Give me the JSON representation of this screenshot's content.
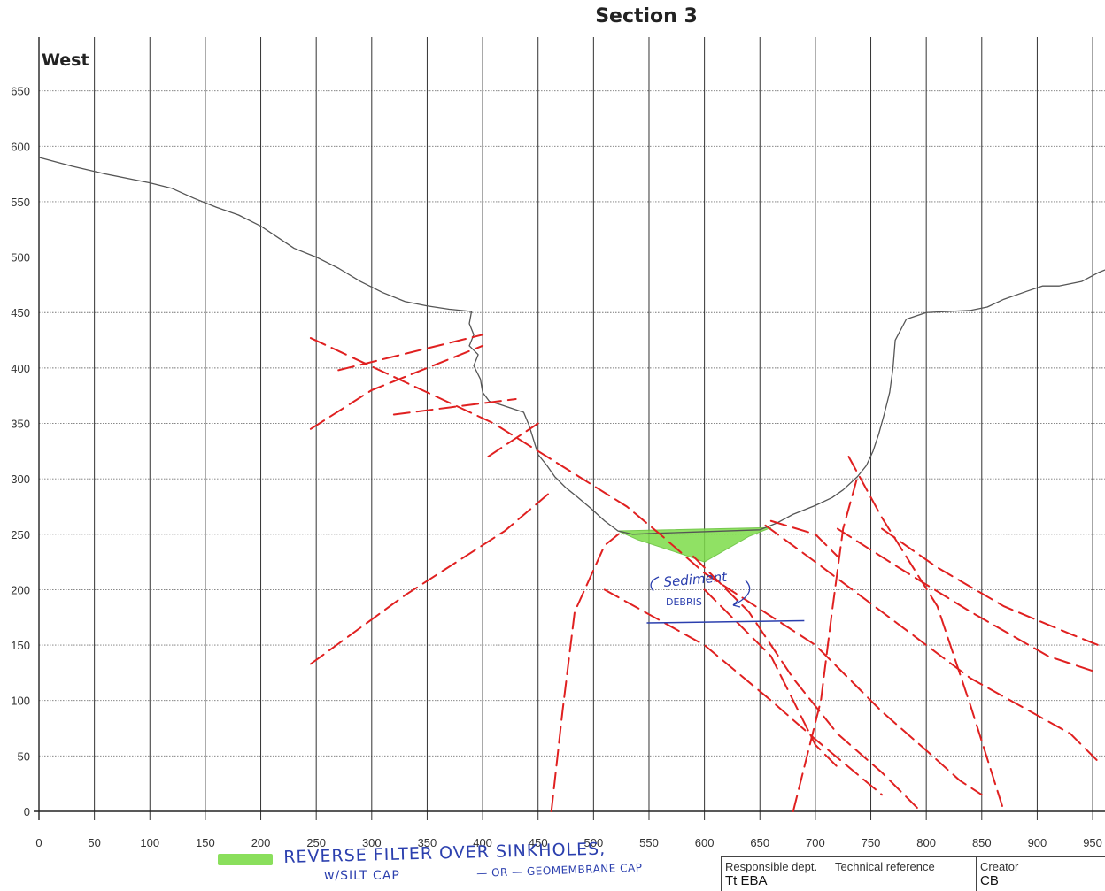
{
  "chart_data": {
    "type": "line",
    "title": "Section 3",
    "corner_label": "West",
    "xlabel": "",
    "ylabel": "",
    "xlim": [
      0,
      965
    ],
    "ylim": [
      0,
      700
    ],
    "x_ticks": [
      0,
      50,
      100,
      150,
      200,
      250,
      300,
      350,
      400,
      450,
      500,
      550,
      600,
      650,
      700,
      750,
      800,
      850,
      900,
      950
    ],
    "y_ticks": [
      0,
      50,
      100,
      150,
      200,
      250,
      300,
      350,
      400,
      450,
      500,
      550,
      600,
      650
    ],
    "grid": true,
    "series": [
      {
        "style": "ground-profile",
        "color": "#555555",
        "points": [
          [
            0,
            590
          ],
          [
            30,
            582
          ],
          [
            60,
            575
          ],
          [
            85,
            570
          ],
          [
            100,
            567
          ],
          [
            120,
            562
          ],
          [
            140,
            553
          ],
          [
            160,
            545
          ],
          [
            180,
            538
          ],
          [
            200,
            528
          ],
          [
            215,
            518
          ],
          [
            230,
            508
          ],
          [
            250,
            500
          ],
          [
            270,
            490
          ],
          [
            290,
            478
          ],
          [
            310,
            468
          ],
          [
            330,
            460
          ],
          [
            350,
            456
          ],
          [
            370,
            453
          ],
          [
            390,
            451
          ],
          [
            388,
            440
          ],
          [
            392,
            430
          ],
          [
            388,
            420
          ],
          [
            396,
            412
          ],
          [
            392,
            402
          ],
          [
            398,
            390
          ],
          [
            400,
            378
          ],
          [
            406,
            370
          ],
          [
            416,
            367
          ],
          [
            425,
            364
          ],
          [
            437,
            360
          ],
          [
            442,
            348
          ],
          [
            446,
            335
          ],
          [
            450,
            322
          ],
          [
            458,
            312
          ],
          [
            465,
            302
          ],
          [
            475,
            292
          ],
          [
            485,
            284
          ],
          [
            498,
            273
          ],
          [
            510,
            262
          ],
          [
            522,
            253
          ],
          [
            535,
            250
          ],
          [
            560,
            251
          ],
          [
            590,
            252
          ],
          [
            620,
            253
          ],
          [
            650,
            254
          ],
          [
            665,
            260
          ],
          [
            680,
            268
          ],
          [
            700,
            276
          ],
          [
            715,
            283
          ],
          [
            725,
            290
          ],
          [
            738,
            302
          ],
          [
            746,
            312
          ],
          [
            752,
            325
          ],
          [
            757,
            340
          ],
          [
            762,
            358
          ],
          [
            767,
            378
          ],
          [
            770,
            400
          ],
          [
            772,
            425
          ],
          [
            782,
            444
          ],
          [
            800,
            450
          ],
          [
            820,
            451
          ],
          [
            840,
            452
          ],
          [
            855,
            455
          ],
          [
            870,
            462
          ],
          [
            890,
            469
          ],
          [
            905,
            474
          ],
          [
            920,
            474
          ],
          [
            940,
            478
          ],
          [
            955,
            486
          ],
          [
            965,
            490
          ]
        ]
      },
      {
        "style": "fracture",
        "color": "#e02020",
        "segments": [
          [
            [
              245,
              427
            ],
            [
              410,
              350
            ],
            [
              530,
              275
            ],
            [
              560,
              250
            ],
            [
              600,
              215
            ],
            [
              700,
              150
            ],
            [
              760,
              90
            ],
            [
              800,
              55
            ],
            [
              830,
              28
            ],
            [
              850,
              15
            ]
          ],
          [
            [
              245,
              345
            ],
            [
              300,
              380
            ],
            [
              400,
              420
            ]
          ],
          [
            [
              270,
              398
            ],
            [
              400,
              430
            ]
          ],
          [
            [
              320,
              358
            ],
            [
              430,
              372
            ]
          ],
          [
            [
              405,
              320
            ],
            [
              450,
              350
            ]
          ],
          [
            [
              245,
              133
            ],
            [
              330,
              195
            ],
            [
              420,
              253
            ],
            [
              460,
              287
            ]
          ],
          [
            [
              462,
              0
            ],
            [
              472,
              90
            ],
            [
              483,
              180
            ],
            [
              510,
              240
            ],
            [
              525,
              252
            ]
          ],
          [
            [
              510,
              200
            ],
            [
              600,
              150
            ],
            [
              660,
              100
            ],
            [
              700,
              65
            ],
            [
              760,
              15
            ]
          ],
          [
            [
              590,
              230
            ],
            [
              640,
              180
            ],
            [
              680,
              120
            ],
            [
              720,
              70
            ],
            [
              760,
              35
            ],
            [
              795,
              0
            ]
          ],
          [
            [
              655,
              258
            ],
            [
              700,
              225
            ],
            [
              760,
              180
            ],
            [
              840,
              120
            ],
            [
              930,
              70
            ],
            [
              955,
              45
            ]
          ],
          [
            [
              720,
              255
            ],
            [
              775,
              220
            ],
            [
              840,
              180
            ],
            [
              910,
              140
            ],
            [
              955,
              125
            ]
          ],
          [
            [
              760,
              255
            ],
            [
              810,
              220
            ],
            [
              870,
              185
            ],
            [
              930,
              160
            ],
            [
              955,
              150
            ]
          ],
          [
            [
              680,
              0
            ],
            [
              705,
              100
            ],
            [
              715,
              180
            ],
            [
              725,
              255
            ],
            [
              738,
              302
            ]
          ],
          [
            [
              730,
              320
            ],
            [
              760,
              265
            ],
            [
              810,
              185
            ],
            [
              840,
              95
            ],
            [
              870,
              0
            ]
          ],
          [
            [
              600,
              200
            ],
            [
              660,
              140
            ],
            [
              700,
              60
            ],
            [
              720,
              40
            ]
          ],
          [
            [
              660,
              262
            ],
            [
              700,
              250
            ],
            [
              720,
              230
            ]
          ]
        ]
      }
    ],
    "highlight_region": {
      "label": "Sediment/debris fill",
      "color": "#7ddc4a",
      "points": [
        [
          522,
          253
        ],
        [
          660,
          256
        ],
        [
          640,
          248
        ],
        [
          600,
          225
        ],
        [
          580,
          232
        ],
        [
          540,
          245
        ]
      ]
    },
    "annotation": {
      "lines": [
        "Sediment",
        "DEBRIS"
      ],
      "underline_from": [
        548,
        170
      ],
      "underline_to": [
        690,
        172
      ],
      "color": "#2b3fae"
    },
    "legend_note": {
      "line1": "REVERSE FILTER OVER SINKHOLES,",
      "line2": "w/SILT CAP",
      "line3": "— OR — GEOMEMBRANE CAP"
    },
    "title_block": [
      {
        "label": "Responsible dept.",
        "value": "Tt EBA"
      },
      {
        "label": "Technical reference",
        "value": ""
      },
      {
        "label": "Creator",
        "value": "CB"
      }
    ]
  }
}
